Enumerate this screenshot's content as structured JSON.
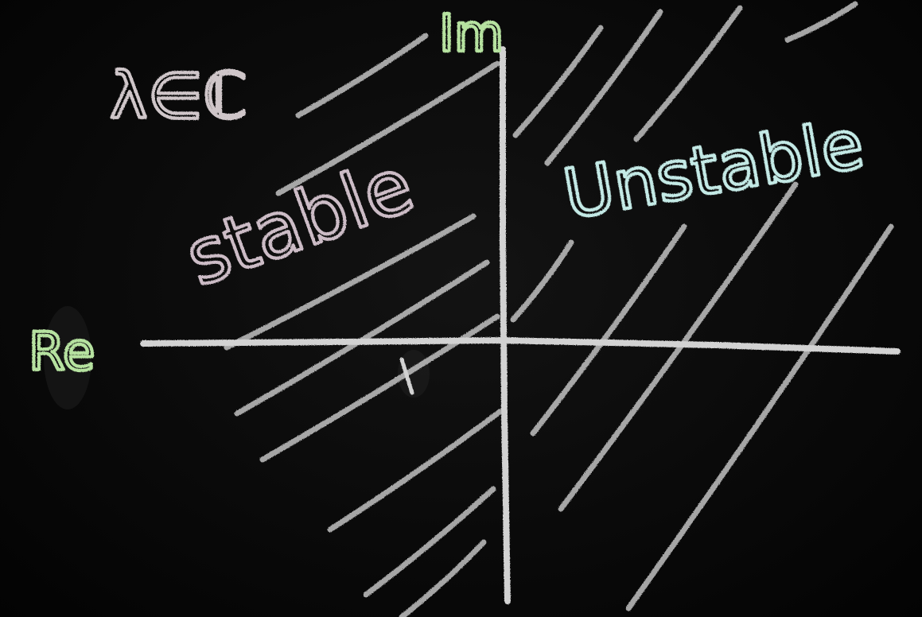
{
  "labels": {
    "imaginary_axis": "Im",
    "real_axis": "Re",
    "domain": "λ∈ℂ",
    "left_region": "stable",
    "right_region": "Unstable"
  },
  "colors": {
    "chalk_white": "#d2d2d2",
    "chalk_green": "#b6e2a0",
    "chalk_pink": "#ccbcc6",
    "chalk_cyan": "#c4eae6",
    "chalk_label_grey": "#cfc6c9"
  }
}
